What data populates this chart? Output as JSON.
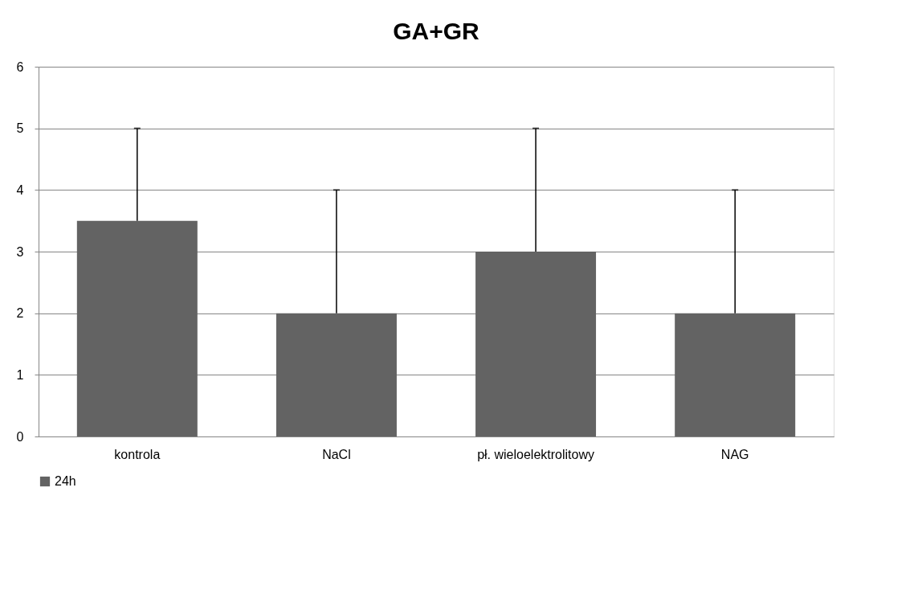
{
  "chart_data": {
    "type": "bar",
    "title": "GA+GR",
    "categories": [
      "kontrola",
      "NaCl",
      "pł. wieloelektrolitowy",
      "NAG"
    ],
    "series": [
      {
        "name": "24h",
        "color": "#636363",
        "values": [
          3.5,
          2,
          3,
          2
        ],
        "errors": [
          [
            3.5,
            5
          ],
          [
            2,
            4
          ],
          [
            3,
            5
          ],
          [
            2,
            4
          ]
        ]
      }
    ],
    "ylim": [
      0,
      6
    ],
    "yticks": [
      0,
      1,
      2,
      3,
      4,
      5,
      6
    ],
    "grid": "y",
    "legend": "bottom"
  }
}
